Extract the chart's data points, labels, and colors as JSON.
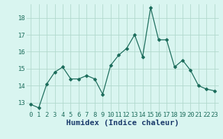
{
  "x": [
    0,
    1,
    2,
    3,
    4,
    5,
    6,
    7,
    8,
    9,
    10,
    11,
    12,
    13,
    14,
    15,
    16,
    17,
    18,
    19,
    20,
    21,
    22,
    23
  ],
  "y": [
    12.9,
    12.7,
    14.1,
    14.8,
    15.1,
    14.4,
    14.4,
    14.6,
    14.4,
    13.5,
    15.2,
    15.8,
    16.2,
    17.0,
    15.7,
    18.6,
    16.7,
    16.7,
    15.1,
    15.5,
    14.9,
    14.0,
    13.8,
    13.7
  ],
  "xlabel": "Humidex (Indice chaleur)",
  "ylim": [
    12.5,
    18.8
  ],
  "xlim": [
    -0.5,
    23.5
  ],
  "yticks": [
    13,
    14,
    15,
    16,
    17,
    18
  ],
  "xticks": [
    0,
    1,
    2,
    3,
    4,
    5,
    6,
    7,
    8,
    9,
    10,
    11,
    12,
    13,
    14,
    15,
    16,
    17,
    18,
    19,
    20,
    21,
    22,
    23
  ],
  "line_color": "#1a6b5a",
  "marker": "D",
  "marker_size": 2.5,
  "bg_color": "#d9f5f0",
  "grid_color": "#b0d8cc",
  "xlabel_fontsize": 8,
  "tick_fontsize": 6.5,
  "xlabel_color": "#1a3a6b",
  "tick_color": "#1a6b5a"
}
